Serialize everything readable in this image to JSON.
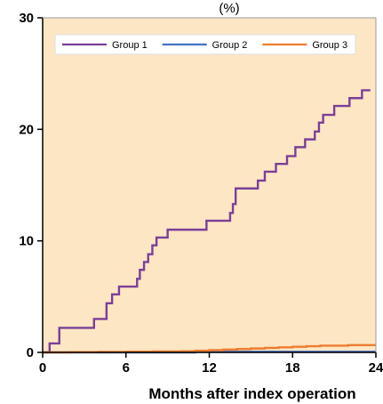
{
  "chart_data": {
    "type": "line",
    "title": "",
    "ylabel_partial": "(%)",
    "xlabel": "Months after index operation",
    "xlim": [
      0,
      24
    ],
    "ylim": [
      0,
      30
    ],
    "x_ticks": [
      0,
      6,
      12,
      18,
      24
    ],
    "y_ticks": [
      0,
      10,
      20,
      30
    ],
    "legend_position": "top",
    "background_color": "#fde6c4",
    "series": [
      {
        "name": "Group 1",
        "color": "#7b3f99",
        "step": true,
        "x": [
          0,
          0.5,
          1.2,
          3.7,
          4.6,
          5.0,
          5.5,
          6.8,
          7.0,
          7.3,
          7.6,
          7.9,
          8.2,
          9.0,
          10.0,
          11.8,
          13.5,
          13.7,
          13.9,
          15.5,
          16.0,
          16.8,
          17.6,
          18.2,
          18.9,
          19.6,
          19.9,
          20.2,
          21.0,
          22.1,
          23.0,
          23.6
        ],
        "y": [
          0,
          0.8,
          2.2,
          3.0,
          4.4,
          5.2,
          5.9,
          6.6,
          7.4,
          8.1,
          8.8,
          9.6,
          10.3,
          11.0,
          11.0,
          11.8,
          12.5,
          13.3,
          14.7,
          15.4,
          16.2,
          16.9,
          17.6,
          18.4,
          19.1,
          19.8,
          20.6,
          21.3,
          22.1,
          22.8,
          23.5,
          23.5
        ]
      },
      {
        "name": "Group 2",
        "color": "#4472c4",
        "step": true,
        "x": [
          0,
          11,
          24
        ],
        "y": [
          0,
          0.05,
          0.05
        ]
      },
      {
        "name": "Group 3",
        "color": "#ed7d31",
        "step": true,
        "x": [
          0,
          2,
          4,
          6,
          8,
          10,
          11,
          12,
          13,
          14,
          15,
          16,
          17,
          18,
          19,
          20,
          21,
          22,
          24
        ],
        "y": [
          0,
          0.02,
          0.04,
          0.06,
          0.08,
          0.1,
          0.15,
          0.2,
          0.25,
          0.3,
          0.35,
          0.4,
          0.45,
          0.5,
          0.55,
          0.6,
          0.6,
          0.65,
          0.65
        ]
      }
    ]
  }
}
